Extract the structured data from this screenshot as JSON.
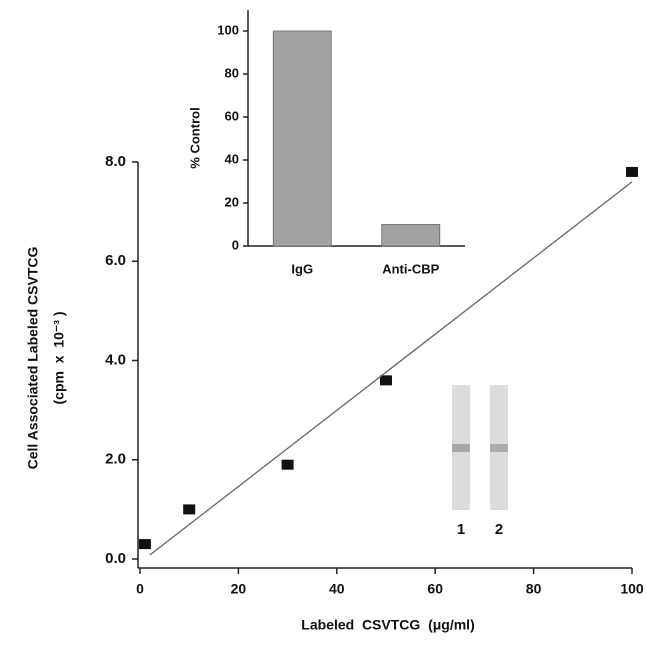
{
  "chart_data": [
    {
      "type": "scatter",
      "x_label": "Labeled  CSVTCG  (μg/ml)",
      "y_label": "Cell Associated Labeled CSVTCG",
      "y_label_2": "(cpm  x  10⁻³ )",
      "xlim": [
        0,
        100
      ],
      "xticks": [
        0,
        20,
        40,
        60,
        80,
        100
      ],
      "ylim": [
        0,
        8
      ],
      "yticks": [
        {
          "value": 0,
          "label": "0.0"
        },
        {
          "value": 2,
          "label": "2.0"
        },
        {
          "value": 4,
          "label": "4.0"
        },
        {
          "value": 6,
          "label": "6.0"
        },
        {
          "value": 8,
          "label": "8.0"
        }
      ],
      "series": [
        {
          "style": "markers",
          "color": "#111111",
          "x": [
            1,
            10,
            30,
            50,
            100
          ],
          "values": [
            0.3,
            1.0,
            1.9,
            3.6,
            7.8
          ]
        },
        {
          "style": "line",
          "color": "#666666",
          "x": [
            2,
            100
          ],
          "values": [
            0.08,
            7.6
          ]
        }
      ],
      "annotations": [
        "1",
        "2"
      ]
    },
    {
      "type": "bar",
      "y_label": "% Control",
      "categories": [
        "IgG",
        "Anti-CBP"
      ],
      "values": [
        100,
        10
      ],
      "color": "#a2a2a2",
      "ylim": [
        0,
        100
      ],
      "yticks": [
        0,
        20,
        40,
        60,
        80,
        100
      ]
    }
  ]
}
